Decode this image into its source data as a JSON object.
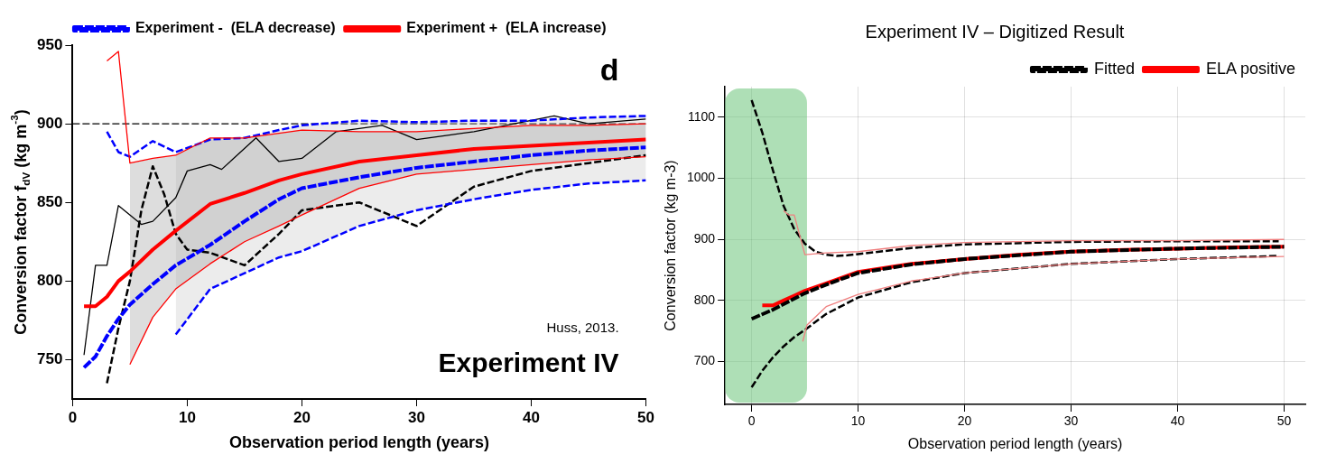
{
  "chart_data": [
    {
      "type": "line",
      "xlabel": "Observation period length (years)",
      "ylabel": "Conversion factor f$_{dV}$ (kg m$^{-3}$)",
      "xlim": [
        0,
        50
      ],
      "xticks": [
        0,
        10,
        20,
        30,
        40,
        50
      ],
      "ylim": [
        725,
        950
      ],
      "yticks": [
        750,
        800,
        850,
        900,
        950
      ],
      "grid": false,
      "legend": "top",
      "ref_lines": [
        {
          "axis": "y",
          "value": 900,
          "color": "#000000",
          "line_style": "dashed"
        }
      ],
      "annotations": [
        "d",
        "Huss, 2013.",
        "Experiment IV"
      ],
      "series": [
        {
          "name": "Experiment +  (ELA increase)",
          "color": "#ff0000",
          "line_style": "solid",
          "x": [
            1,
            2,
            3,
            4,
            5,
            7,
            9,
            12,
            15,
            18,
            20,
            25,
            30,
            35,
            40,
            45,
            50
          ],
          "values": [
            784,
            784,
            790,
            800,
            806,
            820,
            832,
            849,
            856,
            864,
            868,
            876,
            880,
            884,
            886,
            888,
            890
          ],
          "upper": [
            null,
            null,
            null,
            null,
            875,
            878,
            880,
            891,
            891,
            894,
            896,
            895,
            895,
            897,
            899,
            899,
            900
          ],
          "lower": [
            null,
            null,
            null,
            null,
            747,
            777,
            795,
            811,
            825,
            835,
            842,
            859,
            868,
            871,
            874,
            877,
            879
          ]
        },
        {
          "name": "Experiment -  (ELA decrease)",
          "color": "#0000ff",
          "line_style": "dashed",
          "x": [
            1,
            2,
            3,
            4,
            5,
            7,
            9,
            12,
            15,
            18,
            20,
            25,
            30,
            35,
            40,
            45,
            50
          ],
          "values": [
            745,
            752,
            765,
            776,
            785,
            798,
            810,
            823,
            838,
            852,
            859,
            866,
            872,
            876,
            880,
            883,
            885
          ],
          "upper": [
            null,
            null,
            null,
            null,
            null,
            null,
            882,
            890,
            891,
            896,
            899,
            902,
            901,
            902,
            902,
            904,
            905
          ],
          "lower": [
            null,
            null,
            null,
            null,
            null,
            null,
            766,
            795,
            805,
            815,
            819,
            835,
            845,
            852,
            858,
            862,
            864
          ]
        },
        {
          "color": "#ff0000",
          "line_style": "solid",
          "x": [
            3,
            4,
            5,
            7,
            9,
            12,
            15,
            18,
            20,
            25,
            30,
            35,
            40,
            45,
            50
          ],
          "values": [
            940,
            946,
            875,
            878,
            880,
            891,
            891,
            894,
            896,
            895,
            895,
            897,
            899,
            899,
            900
          ]
        },
        {
          "color": "#ff0000",
          "line_style": "solid",
          "x": [
            5,
            7,
            9,
            12,
            15,
            18,
            20,
            25,
            30,
            35,
            40,
            45,
            50
          ],
          "values": [
            747,
            777,
            795,
            811,
            825,
            835,
            842,
            859,
            868,
            871,
            874,
            877,
            879
          ]
        },
        {
          "color": "#0000ff",
          "line_style": "dashed",
          "x": [
            3,
            4,
            5,
            7,
            9,
            12,
            15,
            18,
            20,
            25,
            30,
            35,
            40,
            45,
            50
          ],
          "values": [
            895,
            882,
            879,
            889,
            882,
            890,
            891,
            896,
            899,
            902,
            901,
            902,
            902,
            904,
            905
          ]
        },
        {
          "color": "#0000ff",
          "line_style": "dashed",
          "x": [
            9,
            12,
            15,
            18,
            20,
            25,
            30,
            35,
            40,
            45,
            50
          ],
          "values": [
            766,
            795,
            805,
            815,
            819,
            835,
            845,
            852,
            858,
            862,
            864
          ]
        },
        {
          "color": "#000000",
          "line_style": "solid",
          "x": [
            1,
            2,
            3,
            4,
            6,
            7,
            9,
            10,
            12,
            13,
            16,
            18,
            20,
            23,
            27,
            30,
            33,
            35,
            42,
            45,
            50
          ],
          "values": [
            753,
            810,
            810,
            848,
            836,
            838,
            853,
            870,
            874,
            871,
            891,
            876,
            878,
            895,
            899,
            890,
            893,
            895,
            905,
            900,
            903
          ]
        },
        {
          "color": "#000000",
          "line_style": "dashed",
          "x": [
            3,
            4,
            5,
            6,
            7,
            8,
            9,
            10,
            12,
            15,
            18,
            20,
            25,
            30,
            35,
            40,
            45,
            50
          ],
          "values": [
            735,
            770,
            800,
            845,
            873,
            855,
            830,
            820,
            818,
            810,
            830,
            845,
            850,
            835,
            860,
            870,
            875,
            880
          ]
        }
      ]
    },
    {
      "type": "line",
      "title": "Experiment IV – Digitized Result",
      "xlabel": "Observation period length (years)",
      "ylabel": "Conversion factor (kg m-3)",
      "xlim": [
        -2.5,
        52
      ],
      "xticks": [
        0,
        10,
        20,
        30,
        40,
        50
      ],
      "ylim": [
        630,
        1150
      ],
      "yticks": [
        700,
        800,
        900,
        1000,
        1100
      ],
      "grid": true,
      "legend": "top right",
      "bands": [
        {
          "axis": "x",
          "from": -2.5,
          "to": 5.2,
          "color": "#6cc47a"
        }
      ],
      "series": [
        {
          "name": "ELA positive",
          "color": "#ff0000",
          "line_style": "solid",
          "x": [
            1,
            2,
            3,
            4,
            5,
            7,
            10,
            15,
            20,
            25,
            30,
            35,
            40,
            45,
            50
          ],
          "values": [
            792,
            792,
            800,
            808,
            816,
            828,
            847,
            860,
            868,
            875,
            880,
            883,
            885,
            887,
            888
          ]
        },
        {
          "color": "#f08080",
          "line_style": "solid",
          "x": [
            3,
            3.5,
            4,
            5,
            7,
            10,
            15,
            20,
            30,
            40,
            50
          ],
          "values": [
            947,
            940,
            940,
            875,
            878,
            880,
            890,
            895,
            898,
            898,
            900
          ]
        },
        {
          "color": "#f08080",
          "line_style": "solid",
          "x": [
            4.8,
            5.2,
            7,
            10,
            15,
            20,
            30,
            40,
            50
          ],
          "values": [
            733,
            760,
            790,
            810,
            832,
            845,
            860,
            868,
            872
          ]
        },
        {
          "name": "Fitted",
          "color": "#000000",
          "line_style": "dashed",
          "x": [
            0,
            2,
            5,
            7,
            10,
            15,
            20,
            30,
            40,
            50
          ],
          "values": [
            770,
            785,
            812,
            826,
            845,
            859,
            868,
            880,
            885,
            888
          ]
        },
        {
          "color": "#000000",
          "line_style": "dashed",
          "x": [
            0,
            1,
            2,
            3,
            4,
            5,
            6,
            7,
            8,
            9,
            10,
            15,
            20,
            30,
            40,
            49.5
          ],
          "values": [
            1128,
            1075,
            1013,
            955,
            917,
            893,
            880,
            875,
            873,
            874,
            876,
            886,
            892,
            896,
            897,
            897
          ]
        },
        {
          "color": "#000000",
          "line_style": "dashed",
          "x": [
            0,
            1,
            2,
            3,
            4,
            5,
            7,
            10,
            15,
            20,
            30,
            40,
            49.5
          ],
          "values": [
            658,
            685,
            707,
            725,
            740,
            752,
            778,
            805,
            830,
            845,
            860,
            868,
            873
          ]
        }
      ]
    }
  ]
}
